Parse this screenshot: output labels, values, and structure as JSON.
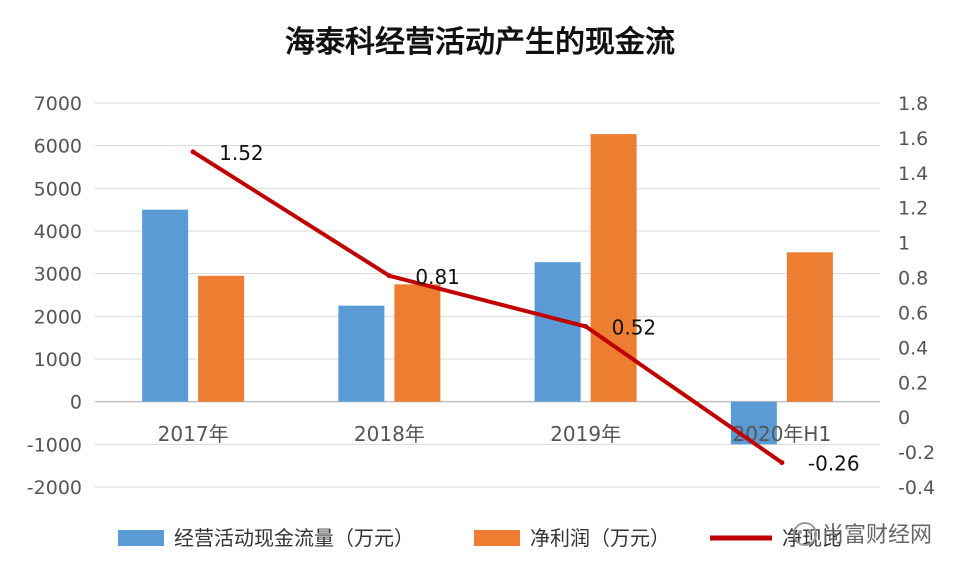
{
  "chart_data": {
    "type": "bar",
    "title": "海泰科经营活动产生的现金流",
    "categories": [
      "2017年",
      "2018年",
      "2019年",
      "2020年H1"
    ],
    "series": [
      {
        "name": "经营活动现金流量（万元）",
        "type": "bar",
        "axis": "left",
        "color": "#5B9BD5",
        "values": [
          4500,
          2250,
          3270,
          -1000
        ]
      },
      {
        "name": "净利润（万元）",
        "type": "bar",
        "axis": "left",
        "color": "#ED7D31",
        "values": [
          2950,
          2750,
          6270,
          3500
        ]
      },
      {
        "name": "净现比",
        "type": "line",
        "axis": "right",
        "color": "#C00000",
        "values": [
          1.52,
          0.81,
          0.52,
          -0.26
        ],
        "data_labels": [
          "1.52",
          "0.81",
          "0.52",
          "-0.26"
        ]
      }
    ],
    "y_left": {
      "ylim": [
        -2000,
        7000
      ],
      "ticks": [
        "7000",
        "6000",
        "5000",
        "4000",
        "3000",
        "2000",
        "1000",
        "0",
        "-1000",
        "-2000"
      ]
    },
    "y_right": {
      "ylim": [
        -0.4,
        1.8
      ],
      "ticks": [
        "1.8",
        "1.6",
        "1.4",
        "1.2",
        "1",
        "0.8",
        "0.6",
        "0.4",
        "0.2",
        "0",
        "-0.2",
        "-0.4"
      ]
    },
    "grid": true,
    "legend": "bottom"
  },
  "watermark": "尚富财经网"
}
